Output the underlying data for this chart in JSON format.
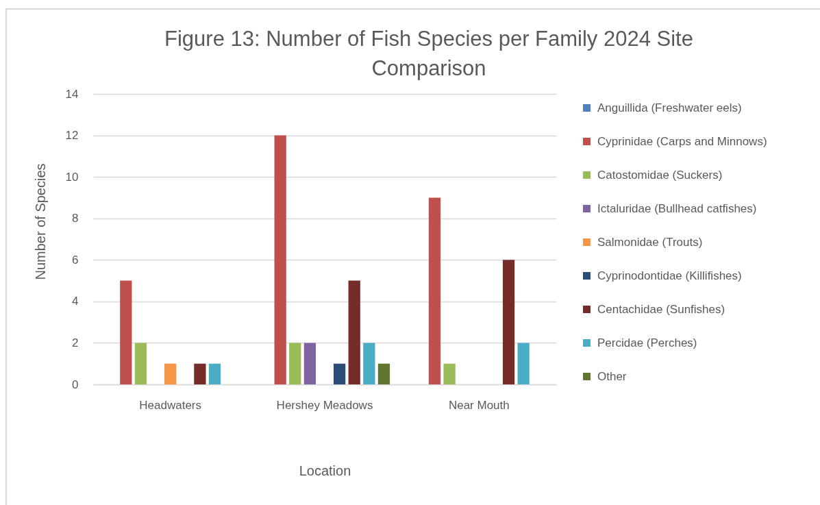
{
  "chart_data": {
    "type": "bar",
    "title": "Figure 13: Number of Fish Species per Family 2024 Site Comparison",
    "xlabel": "Location",
    "ylabel": "Number of Species",
    "categories": [
      "Headwaters",
      "Hershey Meadows",
      "Near Mouth"
    ],
    "series": [
      {
        "name": "Anguillida (Freshwater eels)",
        "color": "#4f81bd",
        "values": [
          0,
          0,
          0
        ]
      },
      {
        "name": "Cyprinidae (Carps and Minnows)",
        "color": "#c0504d",
        "values": [
          5,
          12,
          9
        ]
      },
      {
        "name": "Catostomidae (Suckers)",
        "color": "#9bbb59",
        "values": [
          2,
          2,
          1
        ]
      },
      {
        "name": "Ictaluridae (Bullhead catfishes)",
        "color": "#8064a2",
        "values": [
          0,
          2,
          0
        ]
      },
      {
        "name": "Salmonidae (Trouts)",
        "color": "#f79646",
        "values": [
          1,
          0,
          0
        ]
      },
      {
        "name": "Cyprinodontidae (Killifishes)",
        "color": "#2c4d75",
        "values": [
          0,
          1,
          0
        ]
      },
      {
        "name": "Centachidae (Sunfishes)",
        "color": "#772c2a",
        "values": [
          1,
          5,
          6
        ]
      },
      {
        "name": "Percidae (Perches)",
        "color": "#4bacc6",
        "values": [
          1,
          2,
          2
        ]
      },
      {
        "name": "Other",
        "color": "#5f7530",
        "values": [
          0,
          1,
          0
        ]
      }
    ],
    "ylim": [
      0,
      14
    ],
    "yticks": [
      0,
      2,
      4,
      6,
      8,
      10,
      12,
      14
    ],
    "grid": "y",
    "legend": "right"
  }
}
